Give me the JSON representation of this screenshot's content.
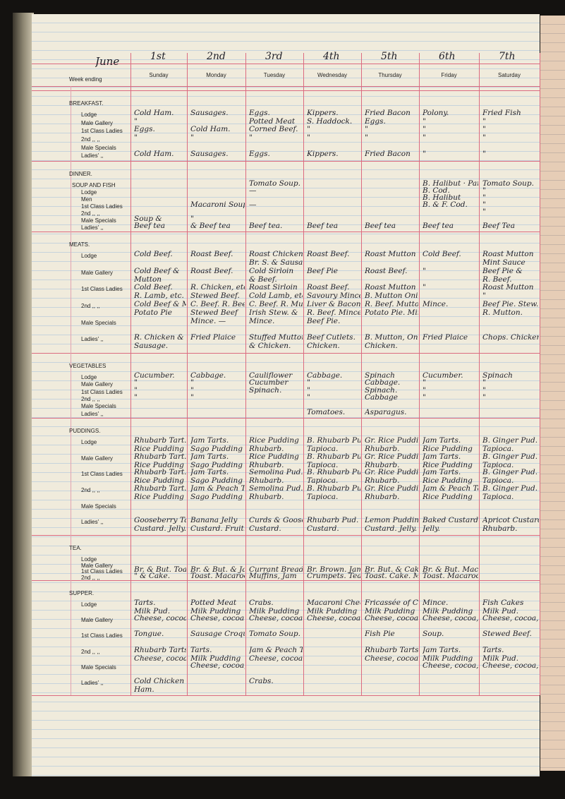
{
  "header": {
    "month": "June",
    "dates": [
      "1st",
      "2nd",
      "3rd",
      "4th",
      "5th",
      "6th",
      "7th"
    ],
    "week_ending": "Week ending",
    "days": [
      "Sunday",
      "Monday",
      "Tuesday",
      "Wednesday",
      "Thursday",
      "Friday",
      "Saturday"
    ]
  },
  "sections": [
    {
      "title": "BREAKFAST.",
      "rows": [
        {
          "label": "Lodge",
          "cells": [
            [
              "Cold Ham."
            ],
            [
              "Sausages."
            ],
            [
              "Eggs."
            ],
            [
              "Kippers."
            ],
            [
              "Fried Bacon"
            ],
            [
              "Polony."
            ],
            [
              "Fried Fish"
            ]
          ]
        },
        {
          "label": "Male Gallery",
          "cells": [
            [
              "\""
            ],
            [],
            [
              "Potted Meat"
            ],
            [
              "S. Haddock."
            ],
            [
              "Eggs."
            ],
            [
              "\""
            ],
            [
              "\""
            ]
          ]
        },
        {
          "label": "1st Class Ladies",
          "cells": [
            [
              "Eggs."
            ],
            [
              "Cold Ham."
            ],
            [
              "Corned Beef."
            ],
            [
              "\""
            ],
            [
              "\""
            ],
            [
              "\""
            ],
            [
              "\""
            ]
          ]
        },
        {
          "label": "2nd  ,,   ,,",
          "cells": [
            [
              "\""
            ],
            [
              "\""
            ],
            [
              "\""
            ],
            [
              "\""
            ],
            [
              "\""
            ],
            [
              "\""
            ],
            [
              "\""
            ]
          ]
        },
        {
          "label": "Male Specials",
          "cells": [
            [],
            [],
            [],
            [],
            [],
            [],
            []
          ]
        },
        {
          "label": "Ladies'  ,,",
          "cells": [
            [
              "Cold Ham."
            ],
            [
              "Sausages."
            ],
            [
              "Eggs."
            ],
            [
              "Kippers."
            ],
            [
              "Fried Bacon"
            ],
            [
              "\""
            ],
            [
              "\""
            ]
          ]
        }
      ]
    },
    {
      "title": "DINNER.",
      "rows": [
        {
          "label": "SOUP AND FISH",
          "cells": [
            [],
            [],
            [
              "Tomato Soup."
            ],
            [],
            [],
            [
              "B. Halibut · Parsley S."
            ],
            [
              "Tomato Soup."
            ]
          ]
        },
        {
          "label": "Lodge",
          "cells": [
            [],
            [],
            [
              "—"
            ],
            [],
            [],
            [
              "B. Cod."
            ],
            [
              "\""
            ]
          ]
        },
        {
          "label": "Men",
          "cells": [
            [],
            [],
            [],
            [],
            [],
            [
              "B. Halibut"
            ],
            [
              "\""
            ]
          ]
        },
        {
          "label": "1st Class Ladies",
          "cells": [
            [],
            [
              "Macaroni Soup."
            ],
            [
              "—"
            ],
            [],
            [],
            [
              "B. & F. Cod."
            ],
            [
              "\""
            ]
          ]
        },
        {
          "label": "2nd  ,,   ,,",
          "cells": [
            [],
            [],
            [],
            [],
            [],
            [],
            [
              "\""
            ]
          ]
        },
        {
          "label": "Male Specials",
          "cells": [
            [
              "Soup &"
            ],
            [
              "\""
            ],
            [],
            [],
            [],
            [],
            []
          ]
        },
        {
          "label": "Ladies'  ,,",
          "cells": [
            [
              "Beef tea"
            ],
            [
              "& Beef tea"
            ],
            [
              "Beef tea."
            ],
            [
              "Beef tea"
            ],
            [
              "Beef tea"
            ],
            [
              "Beef tea"
            ],
            [
              "Beef Tea"
            ]
          ]
        }
      ]
    },
    {
      "title": "MEATS.",
      "rows": [
        {
          "label": "Lodge",
          "cells": [
            [
              "Cold Beef."
            ],
            [
              "Roast Beef."
            ],
            [
              "Roast Chicken.",
              "Br. S. & Sausage"
            ],
            [
              "Roast Beef."
            ],
            [
              "Roast Mutton"
            ],
            [
              "Cold Beef."
            ],
            [
              "Roast Mutton",
              "Mint Sauce"
            ]
          ]
        },
        {
          "label": "Male Gallery",
          "cells": [
            [
              "Cold Beef &",
              "Mutton"
            ],
            [
              "Roast Beef."
            ],
            [
              "Cold Sirloin",
              "& Beef."
            ],
            [
              "Beef Pie"
            ],
            [
              "Roast Beef."
            ],
            [
              "\""
            ],
            [
              "Beef Pie &",
              "R. Beef."
            ]
          ]
        },
        {
          "label": "1st Class Ladies",
          "cells": [
            [
              "Cold Beef.",
              "R. Lamb, etc."
            ],
            [
              "R. Chicken, etc.",
              "Stewed Beef."
            ],
            [
              "Roast Sirloin",
              "Cold Lamb, etc."
            ],
            [
              "Roast Beef.",
              "Savoury Mince"
            ],
            [
              "Roast Mutton",
              "B. Mutton Onion S."
            ],
            [
              "\""
            ],
            [
              "Roast Mutton",
              "\""
            ]
          ]
        },
        {
          "label": "2nd  ,,   ,,",
          "cells": [
            [
              "Cold Beef & Mutton",
              "Potato Pie"
            ],
            [
              "C. Beef. R. Beef.",
              "Stewed Beef"
            ],
            [
              "C. Beef. R. Mutton",
              "Irish Stew. &"
            ],
            [
              "Liver & Bacon",
              "R. Beef. Mince"
            ],
            [
              "R. Beef. Mutton",
              "Potato Pie. Mince"
            ],
            [
              "Mince."
            ],
            [
              "Beef Pie. Stew.",
              "R. Mutton."
            ]
          ]
        },
        {
          "label": "Male Specials",
          "cells": [
            [],
            [
              "Mince. —"
            ],
            [
              "Mince."
            ],
            [
              "Beef Pie."
            ],
            [],
            [],
            []
          ]
        },
        {
          "label": "Ladies'  ,,",
          "cells": [
            [
              "R. Chicken &",
              "Sausage."
            ],
            [
              "Fried Plaice"
            ],
            [
              "Stuffed Mutton",
              "& Chicken."
            ],
            [
              "Beef Cutlets.",
              "Chicken."
            ],
            [
              "B. Mutton, Onion S.",
              "Chicken."
            ],
            [
              "Fried Plaice"
            ],
            [
              "Chops. Chicken"
            ]
          ]
        }
      ]
    },
    {
      "title": "VEGETABLES",
      "rows": [
        {
          "label": "Lodge",
          "cells": [
            [
              "Cucumber."
            ],
            [
              "Cabbage."
            ],
            [
              "Cauliflower"
            ],
            [
              "Cabbage."
            ],
            [
              "Spinach"
            ],
            [
              "Cucumber."
            ],
            [
              "Spinach"
            ]
          ]
        },
        {
          "label": "Male Gallery",
          "cells": [
            [
              "\""
            ],
            [
              "\""
            ],
            [
              "Cucumber"
            ],
            [
              "\""
            ],
            [
              "Cabbage."
            ],
            [
              "\""
            ],
            [
              "\""
            ]
          ]
        },
        {
          "label": "1st Class Ladies",
          "cells": [
            [
              "\""
            ],
            [
              "\""
            ],
            [
              "Spinach."
            ],
            [
              "\""
            ],
            [
              "Spinach."
            ],
            [
              "\""
            ],
            [
              "\""
            ]
          ]
        },
        {
          "label": "2nd  ,,   ,,",
          "cells": [
            [
              "\""
            ],
            [
              "\""
            ],
            [],
            [
              "\""
            ],
            [
              "Cabbage"
            ],
            [
              "\""
            ],
            [
              "\""
            ]
          ]
        },
        {
          "label": "Male Specials",
          "cells": [
            [],
            [],
            [],
            [],
            [],
            [],
            []
          ]
        },
        {
          "label": "Ladies'  ,,",
          "cells": [
            [],
            [],
            [],
            [
              "Tomatoes."
            ],
            [
              "Asparagus."
            ],
            [],
            []
          ]
        }
      ]
    },
    {
      "title": "PUDDINGS.",
      "rows": [
        {
          "label": "Lodge",
          "cells": [
            [
              "Rhubarb Tart.",
              "Rice Pudding"
            ],
            [
              "Jam Tarts.",
              "Sago Pudding"
            ],
            [
              "Rice Pudding",
              "Rhubarb."
            ],
            [
              "B. Rhubarb Pud.",
              "Tapioca."
            ],
            [
              "Gr. Rice Pudding",
              "Rhubarb."
            ],
            [
              "Jam Tarts.",
              "Rice Pudding"
            ],
            [
              "B. Ginger Pud.",
              "Tapioca."
            ]
          ]
        },
        {
          "label": "Male Gallery",
          "cells": [
            [
              "Rhubarb Tart.",
              "Rice Pudding"
            ],
            [
              "Jam Tarts.",
              "Sago Pudding"
            ],
            [
              "Rice Pudding",
              "Rhubarb."
            ],
            [
              "B. Rhubarb Pud.",
              "Tapioca."
            ],
            [
              "Gr. Rice Pudding",
              "Rhubarb."
            ],
            [
              "Jam Tarts.",
              "Rice Pudding"
            ],
            [
              "B. Ginger Pud.",
              "Tapioca."
            ]
          ]
        },
        {
          "label": "1st Class Ladies",
          "cells": [
            [
              "Rhubarb Tart.",
              "Rice Pudding"
            ],
            [
              "Jam Tarts.",
              "Sago Pudding"
            ],
            [
              "Semolina Pud.",
              "Rhubarb."
            ],
            [
              "B. Rhubarb Pud.",
              "Tapioca."
            ],
            [
              "Gr. Rice Pudding",
              "Rhubarb."
            ],
            [
              "Jam Tarts.",
              "Rice Pudding"
            ],
            [
              "B. Ginger Pud.",
              "Tapioca."
            ]
          ]
        },
        {
          "label": "2nd  ,,   ,,",
          "cells": [
            [
              "Rhubarb Tart.",
              "Rice Pudding"
            ],
            [
              "Jam & Peach Tarts",
              "Sago Pudding"
            ],
            [
              "Semolina Pud.",
              "Rhubarb."
            ],
            [
              "B. Rhubarb Pud.",
              "Tapioca."
            ],
            [
              "Gr. Rice Pudding",
              "Rhubarb."
            ],
            [
              "Jam & Peach Tarts",
              "Rice Pudding"
            ],
            [
              "B. Ginger Pud.",
              "Tapioca."
            ]
          ]
        },
        {
          "label": "Male Specials",
          "cells": [
            [],
            [],
            [],
            [],
            [],
            [],
            []
          ]
        },
        {
          "label": "Ladies'  ,,",
          "cells": [
            [
              "Gooseberry Tart.",
              "Custard. Jelly."
            ],
            [
              "Banana Jelly",
              "Custard. Fruit."
            ],
            [
              "Curds & Gooseberries",
              "Custard."
            ],
            [
              "Rhubarb Pud.",
              "Custard."
            ],
            [
              "Lemon Pudding",
              "Custard. Jelly."
            ],
            [
              "Baked Custard",
              "Jelly."
            ],
            [
              "Apricot Custard",
              "Rhubarb."
            ]
          ]
        }
      ]
    },
    {
      "title": "TEA.",
      "rows": [
        {
          "label": "Lodge",
          "cells": [
            [],
            [],
            [],
            [],
            [],
            [],
            []
          ]
        },
        {
          "label": "Male Gallery",
          "cells": [
            [],
            [],
            [],
            [],
            [],
            [],
            []
          ]
        },
        {
          "label": "1st Class Ladies",
          "cells": [
            [
              "Br. & But. Toast Cake"
            ],
            [
              "Br. & But. & Jam"
            ],
            [
              "Currant Bread."
            ],
            [
              "Br. Brown. Jam"
            ],
            [
              "Br. But. & Cake"
            ],
            [
              "Br. & But. Macaroons"
            ],
            []
          ]
        },
        {
          "label": "2nd  ,,   ,,",
          "cells": [
            [
              "\" & Cake."
            ],
            [
              "Toast. Macaroons. Jam"
            ],
            [
              "Muffins, Jam"
            ],
            [
              "Crumpets. Tea."
            ],
            [
              "Toast. Cake. Marm."
            ],
            [
              "Toast. Macaroons. Jam"
            ],
            []
          ]
        }
      ]
    },
    {
      "title": "SUPPER.",
      "rows": [
        {
          "label": "Lodge",
          "cells": [
            [
              "Tarts.",
              "Milk Pud."
            ],
            [
              "Potted Meat",
              "Milk Pudding"
            ],
            [
              "Crabs.",
              "Milk Pudding"
            ],
            [
              "Macaroni Cheese",
              "Milk Pudding"
            ],
            [
              "Fricassée of Cod.",
              "Milk Pudding"
            ],
            [
              "Mince.",
              "Milk Pudding"
            ],
            [
              "Fish Cakes",
              "Milk Pud."
            ]
          ]
        },
        {
          "label": "Male Gallery",
          "cells": [
            [
              "Cheese, cocoa etc."
            ],
            [
              "Cheese, cocoa etc."
            ],
            [
              "Cheese, cocoa, etc."
            ],
            [
              "Cheese, cocoa, etc."
            ],
            [
              "Cheese, cocoa, etc."
            ],
            [
              "Cheese, cocoa, etc."
            ],
            [
              "Cheese, cocoa, etc."
            ]
          ]
        },
        {
          "label": "1st Class Ladies",
          "cells": [
            [
              "Tongue."
            ],
            [
              "Sausage Croquettes"
            ],
            [
              "Tomato Soup."
            ],
            [],
            [
              "Fish Pie"
            ],
            [
              "Soup."
            ],
            [
              "Stewed Beef."
            ]
          ]
        },
        {
          "label": "2nd  ,,   ,,",
          "cells": [
            [
              "Rhubarb Tarts.",
              "Cheese, cocoa etc."
            ],
            [
              "Tarts.",
              "Milk Pudding"
            ],
            [
              "Jam & Peach Tarts",
              "Cheese, cocoa, etc."
            ],
            [],
            [
              "Rhubarb Tarts.",
              "Cheese, cocoa etc."
            ],
            [
              "Jam Tarts.",
              "Milk Pudding"
            ],
            [
              "Tarts.",
              "Milk Pud."
            ]
          ]
        },
        {
          "label": "Male Specials",
          "cells": [
            [],
            [
              "Cheese, cocoa, etc."
            ],
            [],
            [],
            [],
            [
              "Cheese, cocoa, etc."
            ],
            [
              "Cheese, cocoa, etc."
            ]
          ]
        },
        {
          "label": "Ladies'  ,,",
          "cells": [
            [
              "Cold Chicken &",
              "Ham."
            ],
            [],
            [
              "Crabs."
            ],
            [],
            [],
            [],
            []
          ]
        }
      ]
    }
  ]
}
